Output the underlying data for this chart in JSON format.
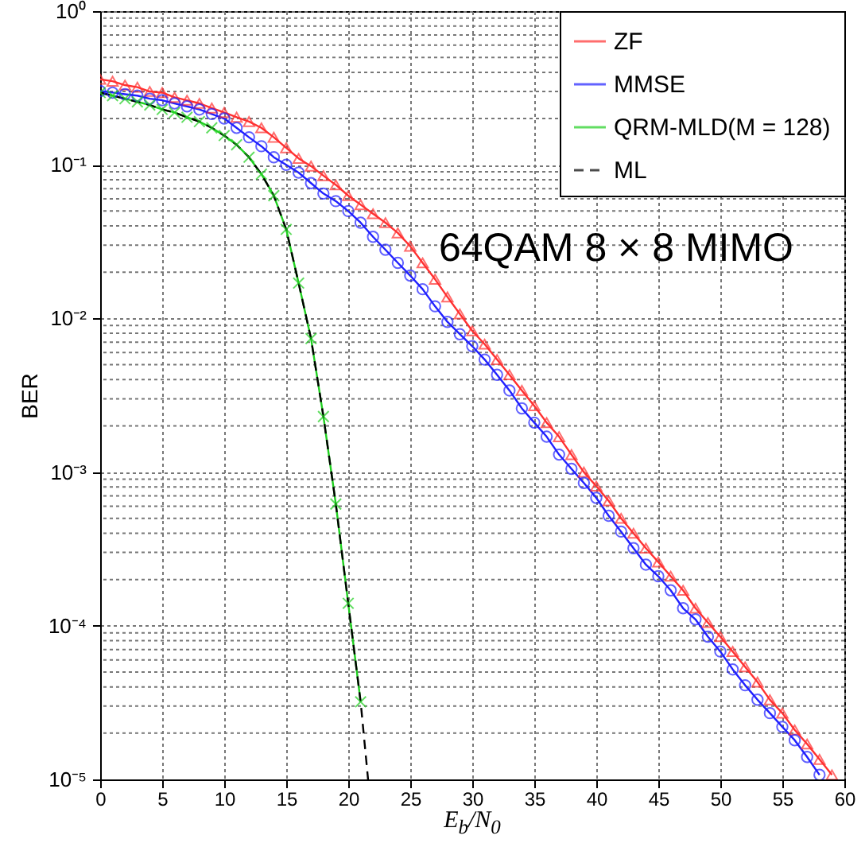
{
  "chart_data": {
    "type": "line",
    "xlabel": "E$_{b}$/N$_{0}$",
    "ylabel": "BER",
    "log": "y",
    "grid": true,
    "legend": "top right",
    "x": [
      0,
      1,
      2,
      3,
      4,
      5,
      6,
      7,
      8,
      9,
      10,
      11,
      12,
      13,
      14,
      15,
      16,
      17,
      18,
      19,
      20,
      21,
      22,
      23,
      24,
      25,
      26,
      27,
      28,
      29,
      30,
      31,
      32,
      33,
      34,
      35,
      36,
      37,
      38,
      39,
      40,
      41,
      42,
      43,
      44,
      45,
      46,
      47,
      48,
      49,
      50,
      51,
      52,
      53,
      54,
      55,
      56,
      57,
      58,
      59
    ],
    "xlim": [
      0,
      60
    ],
    "xticks": [
      0,
      5,
      10,
      15,
      20,
      25,
      30,
      35,
      40,
      45,
      50,
      55,
      60
    ],
    "ylim": [
      1e-05,
      1
    ],
    "yticks": [
      {
        "value": 1e-05,
        "label": "10⁻⁵"
      },
      {
        "value": 0.0001,
        "label": "10⁻⁴"
      },
      {
        "value": 0.001,
        "label": "10⁻³"
      },
      {
        "value": 0.01,
        "label": "10⁻²"
      },
      {
        "value": 0.1,
        "label": "10⁻¹"
      },
      {
        "value": 1,
        "label": "10⁰"
      }
    ],
    "annotations": [
      "64QAM 8 × 8 MIMO"
    ],
    "series": [
      {
        "name": "ZF",
        "color": "#ff3030",
        "marker": "triangle",
        "line_style": "solid",
        "values": [
          0.36,
          0.35,
          0.33,
          0.32,
          0.3,
          0.295,
          0.275,
          0.263,
          0.251,
          0.234,
          0.219,
          0.204,
          0.191,
          0.174,
          0.151,
          0.129,
          0.11,
          0.098,
          0.085,
          0.074,
          0.063,
          0.055,
          0.048,
          0.042,
          0.036,
          0.0295,
          0.023,
          0.018,
          0.0138,
          0.0107,
          0.0083,
          0.0068,
          0.0054,
          0.0043,
          0.0034,
          0.0027,
          0.0021,
          0.0017,
          0.0013,
          0.001,
          0.00081,
          0.00065,
          0.0005,
          0.0004,
          0.00032,
          0.00026,
          0.00021,
          0.00017,
          0.00013,
          0.000105,
          8.5e-05,
          6.8e-05,
          5.4e-05,
          4.3e-05,
          3.3e-05,
          2.7e-05,
          2.1e-05,
          1.7e-05,
          1.35e-05,
          1.07e-05
        ]
      },
      {
        "name": "MMSE",
        "color": "#2020ff",
        "marker": "circle",
        "line_style": "solid",
        "x": [
          0,
          1,
          2,
          3,
          4,
          5,
          6,
          7,
          8,
          9,
          10,
          11,
          12,
          13,
          14,
          15,
          16,
          17,
          18,
          19,
          20,
          21,
          22,
          23,
          24,
          25,
          26,
          27,
          28,
          29,
          30,
          31,
          32,
          33,
          34,
          35,
          36,
          37,
          38,
          39,
          40,
          41,
          42,
          43,
          44,
          45,
          46,
          47,
          48,
          49,
          50,
          51,
          52,
          53,
          54,
          55,
          56,
          57,
          58
        ],
        "values": [
          0.302,
          0.295,
          0.288,
          0.282,
          0.269,
          0.263,
          0.251,
          0.24,
          0.229,
          0.214,
          0.2,
          0.174,
          0.151,
          0.132,
          0.112,
          0.1,
          0.089,
          0.076,
          0.065,
          0.058,
          0.05,
          0.042,
          0.034,
          0.028,
          0.023,
          0.019,
          0.0155,
          0.012,
          0.0095,
          0.0079,
          0.0066,
          0.0054,
          0.0043,
          0.0034,
          0.0026,
          0.0021,
          0.0017,
          0.0013,
          0.00105,
          0.00085,
          0.00068,
          0.00052,
          0.00041,
          0.00032,
          0.00025,
          0.00021,
          0.00017,
          0.00013,
          0.00011,
          8.5e-05,
          6.8e-05,
          5.2e-05,
          4.1e-05,
          3.3e-05,
          2.7e-05,
          2.2e-05,
          1.8e-05,
          1.4e-05,
          1.07e-05
        ]
      },
      {
        "name": "QRM-MLD(M = 128)",
        "color": "#20d020",
        "marker": "cross",
        "line_style": "solid",
        "x": [
          0,
          1,
          2,
          3,
          4,
          5,
          6,
          7,
          8,
          9,
          10,
          11,
          12,
          13,
          14,
          15,
          16,
          17,
          18,
          19,
          20,
          21
        ],
        "values": [
          0.295,
          0.282,
          0.269,
          0.257,
          0.245,
          0.229,
          0.219,
          0.204,
          0.191,
          0.174,
          0.155,
          0.135,
          0.112,
          0.087,
          0.063,
          0.038,
          0.017,
          0.0074,
          0.0023,
          0.00062,
          0.00014,
          3.2e-05
        ]
      },
      {
        "name": "ML",
        "color": "#000000",
        "marker": "none",
        "line_style": "dashed",
        "x": [
          0,
          1,
          2,
          3,
          4,
          5,
          6,
          7,
          8,
          9,
          10,
          11,
          12,
          13,
          14,
          15,
          16,
          17,
          18,
          19,
          20,
          21,
          21.6
        ],
        "values": [
          0.295,
          0.282,
          0.269,
          0.257,
          0.245,
          0.229,
          0.219,
          0.204,
          0.191,
          0.174,
          0.155,
          0.135,
          0.112,
          0.087,
          0.063,
          0.038,
          0.017,
          0.0074,
          0.0023,
          0.00062,
          0.00014,
          3.2e-05,
          1e-05
        ]
      }
    ]
  }
}
